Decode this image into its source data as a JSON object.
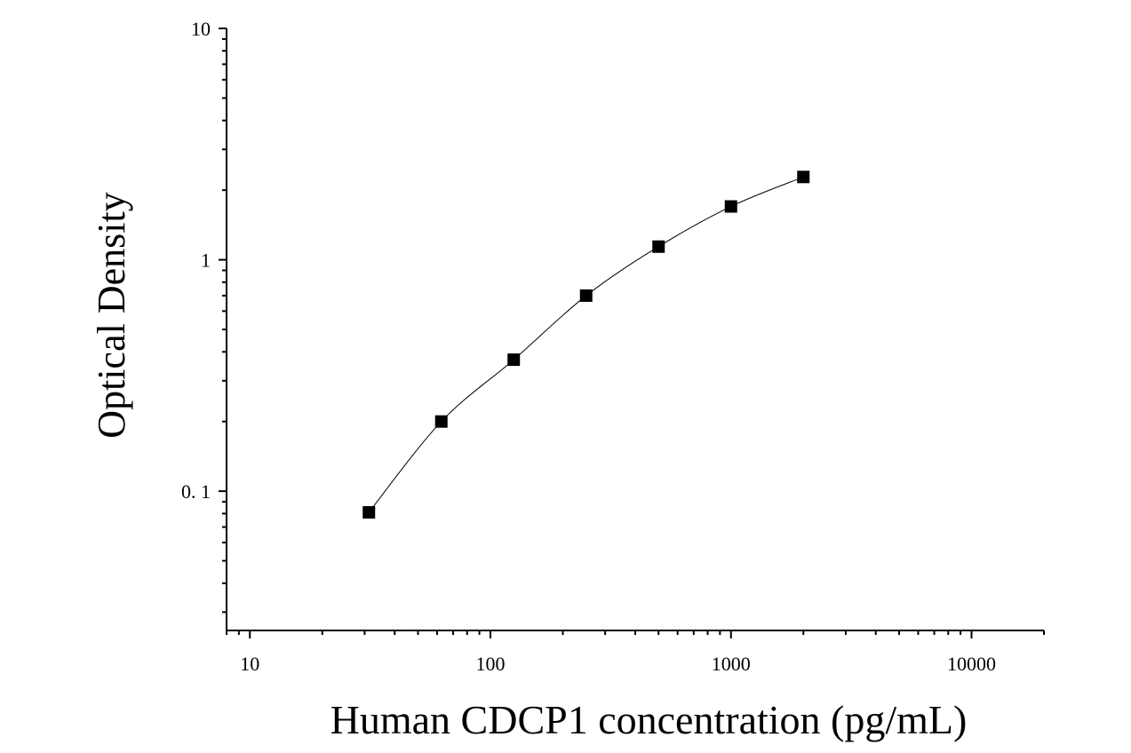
{
  "chart_data": {
    "type": "scatter",
    "xlabel": "Human CDCP1 concentration (pg/mL)",
    "ylabel": "Optical Density",
    "x_scale": "log",
    "y_scale": "log",
    "xlim": [
      8,
      20000
    ],
    "ylim": [
      0.025,
      10
    ],
    "x_ticks": [
      10,
      100,
      1000,
      10000
    ],
    "x_tick_labels": [
      "10",
      "100",
      "1000",
      "10000"
    ],
    "y_ticks": [
      0.1,
      1,
      10
    ],
    "y_tick_labels": [
      "0. 1",
      "1",
      "10"
    ],
    "grid": false,
    "series": [
      {
        "x": [
          31.25,
          62.5,
          125,
          250,
          500,
          1000,
          2000
        ],
        "y": [
          0.081,
          0.2,
          0.37,
          0.7,
          1.14,
          1.7,
          2.28
        ]
      }
    ],
    "fit_curve": true,
    "colors": {
      "marker": "#000000",
      "line": "#000000",
      "axis": "#000000"
    }
  }
}
